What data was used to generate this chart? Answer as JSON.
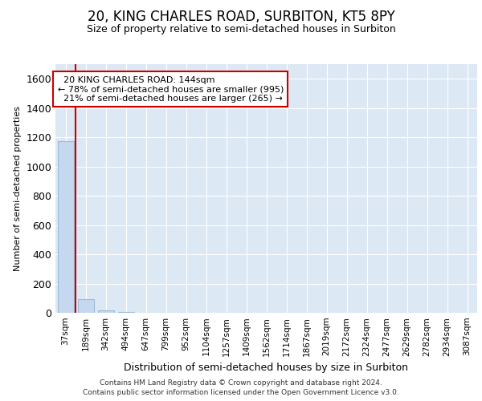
{
  "title_line1": "20, KING CHARLES ROAD, SURBITON, KT5 8PY",
  "title_line2": "Size of property relative to semi-detached houses in Surbiton",
  "xlabel": "Distribution of semi-detached houses by size in Surbiton",
  "ylabel": "Number of semi-detached properties",
  "categories": [
    "37sqm",
    "189sqm",
    "342sqm",
    "494sqm",
    "647sqm",
    "799sqm",
    "952sqm",
    "1104sqm",
    "1257sqm",
    "1409sqm",
    "1562sqm",
    "1714sqm",
    "1867sqm",
    "2019sqm",
    "2172sqm",
    "2324sqm",
    "2477sqm",
    "2629sqm",
    "2782sqm",
    "2934sqm",
    "3087sqm"
  ],
  "values": [
    1175,
    95,
    15,
    3,
    2,
    1,
    1,
    0,
    1,
    0,
    0,
    0,
    1,
    0,
    0,
    0,
    0,
    0,
    0,
    0,
    0
  ],
  "bar_color": "#c5d8f0",
  "bar_edge_color": "#9bbcd8",
  "property_line_x": 0.5,
  "property_line_color": "#cc0000",
  "annotation_text": "  20 KING CHARLES ROAD: 144sqm\n← 78% of semi-detached houses are smaller (995)\n  21% of semi-detached houses are larger (265) →",
  "annotation_box_color": "#ffffff",
  "annotation_box_edge": "#cc0000",
  "ylim": [
    0,
    1700
  ],
  "yticks": [
    0,
    200,
    400,
    600,
    800,
    1000,
    1200,
    1400,
    1600
  ],
  "footer_line1": "Contains HM Land Registry data © Crown copyright and database right 2024.",
  "footer_line2": "Contains public sector information licensed under the Open Government Licence v3.0.",
  "background_color": "#ffffff",
  "plot_background": "#dde8f5",
  "grid_color": "#ffffff",
  "title_fontsize": 12,
  "subtitle_fontsize": 9,
  "ylabel_fontsize": 8,
  "xlabel_fontsize": 9,
  "ytick_fontsize": 9,
  "xtick_fontsize": 7.5,
  "annotation_fontsize": 8,
  "footer_fontsize": 6.5
}
